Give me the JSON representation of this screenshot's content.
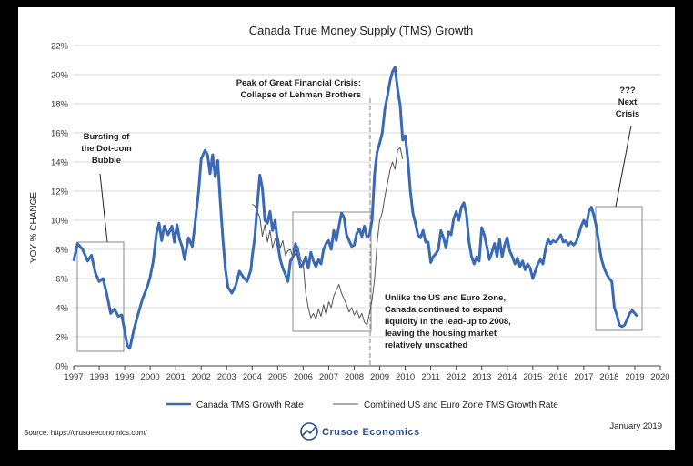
{
  "chart_data": {
    "type": "line",
    "title": "Canada True Money Supply (TMS) Growth",
    "ylabel": "YOY % CHANGE",
    "xlabel": "",
    "xlim": [
      1997,
      2020
    ],
    "ylim": [
      0,
      22
    ],
    "x_ticks": [
      "1997",
      "1998",
      "1999",
      "2000",
      "2001",
      "2002",
      "2003",
      "2004",
      "2005",
      "2006",
      "2007",
      "2008",
      "2009",
      "2010",
      "2011",
      "2012",
      "2013",
      "2014",
      "2015",
      "2016",
      "2017",
      "2018",
      "2019",
      "2020"
    ],
    "y_ticks": [
      "0%",
      "2%",
      "4%",
      "6%",
      "8%",
      "10%",
      "12%",
      "14%",
      "16%",
      "18%",
      "20%",
      "22%"
    ],
    "grid": "horizontal",
    "legend": "bottom",
    "series": [
      {
        "name": "Canada TMS Growth Rate",
        "color": "#3a6ab6",
        "points": [
          [
            1997.0,
            7.2
          ],
          [
            1997.15,
            8.4
          ],
          [
            1997.35,
            8.0
          ],
          [
            1997.55,
            7.2
          ],
          [
            1997.7,
            7.6
          ],
          [
            1997.85,
            6.4
          ],
          [
            1998.0,
            5.8
          ],
          [
            1998.15,
            6.0
          ],
          [
            1998.3,
            4.9
          ],
          [
            1998.45,
            3.6
          ],
          [
            1998.6,
            3.9
          ],
          [
            1998.75,
            3.4
          ],
          [
            1998.88,
            3.5
          ],
          [
            1999.0,
            2.4
          ],
          [
            1999.1,
            1.4
          ],
          [
            1999.2,
            1.2
          ],
          [
            1999.35,
            2.4
          ],
          [
            1999.5,
            3.4
          ],
          [
            1999.7,
            4.6
          ],
          [
            1999.9,
            5.5
          ],
          [
            2000.0,
            6.1
          ],
          [
            2000.12,
            7.2
          ],
          [
            2000.25,
            9.1
          ],
          [
            2000.35,
            9.8
          ],
          [
            2000.45,
            8.6
          ],
          [
            2000.55,
            9.6
          ],
          [
            2000.7,
            9.0
          ],
          [
            2000.85,
            9.6
          ],
          [
            2000.95,
            8.5
          ],
          [
            2001.05,
            9.7
          ],
          [
            2001.15,
            8.7
          ],
          [
            2001.25,
            8.2
          ],
          [
            2001.35,
            7.3
          ],
          [
            2001.5,
            8.8
          ],
          [
            2001.65,
            8.2
          ],
          [
            2001.75,
            9.6
          ],
          [
            2001.9,
            12.0
          ],
          [
            2002.0,
            14.2
          ],
          [
            2002.15,
            14.8
          ],
          [
            2002.25,
            14.5
          ],
          [
            2002.35,
            13.2
          ],
          [
            2002.45,
            14.5
          ],
          [
            2002.55,
            13.0
          ],
          [
            2002.65,
            14.1
          ],
          [
            2002.75,
            11.2
          ],
          [
            2002.85,
            8.7
          ],
          [
            2002.95,
            6.6
          ],
          [
            2003.05,
            5.4
          ],
          [
            2003.2,
            5.0
          ],
          [
            2003.35,
            5.5
          ],
          [
            2003.5,
            6.5
          ],
          [
            2003.65,
            6.1
          ],
          [
            2003.8,
            5.8
          ],
          [
            2003.95,
            6.6
          ],
          [
            2004.0,
            7.5
          ],
          [
            2004.1,
            8.8
          ],
          [
            2004.2,
            11.0
          ],
          [
            2004.3,
            13.1
          ],
          [
            2004.4,
            12.2
          ],
          [
            2004.5,
            10.0
          ],
          [
            2004.6,
            9.8
          ],
          [
            2004.7,
            10.6
          ],
          [
            2004.8,
            9.3
          ],
          [
            2004.9,
            10.0
          ],
          [
            2005.0,
            8.4
          ],
          [
            2005.1,
            7.3
          ],
          [
            2005.2,
            6.7
          ],
          [
            2005.3,
            6.3
          ],
          [
            2005.4,
            5.8
          ],
          [
            2005.5,
            7.2
          ],
          [
            2005.6,
            7.5
          ],
          [
            2005.7,
            8.4
          ],
          [
            2005.8,
            7.5
          ],
          [
            2005.9,
            6.8
          ],
          [
            2006.0,
            7.0
          ],
          [
            2006.1,
            7.5
          ],
          [
            2006.2,
            6.7
          ],
          [
            2006.3,
            7.8
          ],
          [
            2006.4,
            7.2
          ],
          [
            2006.5,
            6.8
          ],
          [
            2006.6,
            7.3
          ],
          [
            2006.7,
            7.0
          ],
          [
            2006.8,
            8.0
          ],
          [
            2006.9,
            8.4
          ],
          [
            2007.0,
            8.6
          ],
          [
            2007.1,
            8.0
          ],
          [
            2007.2,
            9.3
          ],
          [
            2007.3,
            8.6
          ],
          [
            2007.4,
            9.6
          ],
          [
            2007.5,
            10.5
          ],
          [
            2007.6,
            10.2
          ],
          [
            2007.7,
            9.0
          ],
          [
            2007.8,
            8.6
          ],
          [
            2007.9,
            8.2
          ],
          [
            2008.0,
            8.3
          ],
          [
            2008.1,
            9.1
          ],
          [
            2008.2,
            9.4
          ],
          [
            2008.3,
            8.9
          ],
          [
            2008.4,
            9.6
          ],
          [
            2008.5,
            8.8
          ],
          [
            2008.6,
            9.0
          ],
          [
            2008.7,
            10.0
          ],
          [
            2008.8,
            13.2
          ],
          [
            2008.9,
            14.7
          ],
          [
            2009.0,
            15.3
          ],
          [
            2009.1,
            16.0
          ],
          [
            2009.2,
            17.6
          ],
          [
            2009.3,
            18.5
          ],
          [
            2009.4,
            19.5
          ],
          [
            2009.5,
            20.2
          ],
          [
            2009.6,
            20.5
          ],
          [
            2009.7,
            19.0
          ],
          [
            2009.8,
            17.9
          ],
          [
            2009.9,
            15.5
          ],
          [
            2010.0,
            15.8
          ],
          [
            2010.1,
            14.2
          ],
          [
            2010.2,
            12.0
          ],
          [
            2010.3,
            10.5
          ],
          [
            2010.4,
            9.8
          ],
          [
            2010.5,
            9.0
          ],
          [
            2010.6,
            8.8
          ],
          [
            2010.7,
            9.3
          ],
          [
            2010.8,
            8.5
          ],
          [
            2010.9,
            8.5
          ],
          [
            2011.0,
            7.1
          ],
          [
            2011.1,
            7.5
          ],
          [
            2011.2,
            7.7
          ],
          [
            2011.3,
            8.0
          ],
          [
            2011.4,
            9.3
          ],
          [
            2011.5,
            8.8
          ],
          [
            2011.6,
            8.1
          ],
          [
            2011.7,
            9.2
          ],
          [
            2011.8,
            9.0
          ],
          [
            2011.9,
            10.1
          ],
          [
            2012.0,
            10.6
          ],
          [
            2012.1,
            10.0
          ],
          [
            2012.2,
            10.9
          ],
          [
            2012.3,
            11.2
          ],
          [
            2012.4,
            10.4
          ],
          [
            2012.5,
            8.5
          ],
          [
            2012.6,
            7.5
          ],
          [
            2012.7,
            7.0
          ],
          [
            2012.8,
            7.5
          ],
          [
            2012.9,
            7.2
          ],
          [
            2013.0,
            9.5
          ],
          [
            2013.1,
            9.0
          ],
          [
            2013.2,
            8.2
          ],
          [
            2013.3,
            7.3
          ],
          [
            2013.4,
            7.8
          ],
          [
            2013.5,
            8.4
          ],
          [
            2013.6,
            7.5
          ],
          [
            2013.7,
            8.7
          ],
          [
            2013.8,
            7.5
          ],
          [
            2013.9,
            8.3
          ],
          [
            2014.0,
            8.8
          ],
          [
            2014.1,
            7.9
          ],
          [
            2014.2,
            7.5
          ],
          [
            2014.3,
            7.0
          ],
          [
            2014.4,
            7.4
          ],
          [
            2014.5,
            6.8
          ],
          [
            2014.6,
            7.2
          ],
          [
            2014.7,
            6.6
          ],
          [
            2014.8,
            7.0
          ],
          [
            2014.9,
            6.7
          ],
          [
            2015.0,
            6.0
          ],
          [
            2015.1,
            6.5
          ],
          [
            2015.2,
            7.0
          ],
          [
            2015.3,
            7.3
          ],
          [
            2015.4,
            7.0
          ],
          [
            2015.5,
            8.0
          ],
          [
            2015.6,
            8.7
          ],
          [
            2015.7,
            8.4
          ],
          [
            2015.8,
            8.6
          ],
          [
            2015.9,
            8.5
          ],
          [
            2016.0,
            8.7
          ],
          [
            2016.1,
            9.0
          ],
          [
            2016.2,
            8.5
          ],
          [
            2016.3,
            8.6
          ],
          [
            2016.4,
            8.3
          ],
          [
            2016.5,
            8.5
          ],
          [
            2016.6,
            8.3
          ],
          [
            2016.7,
            8.5
          ],
          [
            2016.8,
            9.0
          ],
          [
            2016.9,
            9.6
          ],
          [
            2017.0,
            10.0
          ],
          [
            2017.1,
            9.6
          ],
          [
            2017.2,
            10.6
          ],
          [
            2017.3,
            10.9
          ],
          [
            2017.4,
            10.3
          ],
          [
            2017.5,
            9.5
          ],
          [
            2017.6,
            8.3
          ],
          [
            2017.7,
            7.3
          ],
          [
            2017.8,
            6.7
          ],
          [
            2017.9,
            6.3
          ],
          [
            2018.0,
            6.0
          ],
          [
            2018.1,
            5.8
          ],
          [
            2018.2,
            4.0
          ],
          [
            2018.3,
            3.5
          ],
          [
            2018.4,
            2.8
          ],
          [
            2018.5,
            2.7
          ],
          [
            2018.6,
            2.8
          ],
          [
            2018.7,
            3.2
          ],
          [
            2018.8,
            3.6
          ],
          [
            2018.9,
            3.8
          ],
          [
            2019.0,
            3.6
          ],
          [
            2019.1,
            3.4
          ]
        ]
      },
      {
        "name": "Combined US and Euro Zone TMS Growth Rate",
        "color": "#555555",
        "points": [
          [
            2004.0,
            11.1
          ],
          [
            2004.1,
            11.0
          ],
          [
            2004.2,
            10.6
          ],
          [
            2004.3,
            10.2
          ],
          [
            2004.4,
            8.9
          ],
          [
            2004.5,
            9.7
          ],
          [
            2004.6,
            8.5
          ],
          [
            2004.7,
            9.3
          ],
          [
            2004.8,
            8.1
          ],
          [
            2004.9,
            8.7
          ],
          [
            2005.0,
            9.0
          ],
          [
            2005.1,
            8.1
          ],
          [
            2005.2,
            8.6
          ],
          [
            2005.3,
            7.6
          ],
          [
            2005.4,
            7.9
          ],
          [
            2005.5,
            8.0
          ],
          [
            2005.6,
            7.4
          ],
          [
            2005.7,
            7.7
          ],
          [
            2005.8,
            8.2
          ],
          [
            2005.9,
            7.3
          ],
          [
            2006.0,
            7.0
          ],
          [
            2006.1,
            5.0
          ],
          [
            2006.2,
            4.0
          ],
          [
            2006.3,
            3.3
          ],
          [
            2006.4,
            3.6
          ],
          [
            2006.5,
            3.2
          ],
          [
            2006.6,
            3.9
          ],
          [
            2006.7,
            3.4
          ],
          [
            2006.8,
            4.2
          ],
          [
            2006.9,
            3.5
          ],
          [
            2007.0,
            4.4
          ],
          [
            2007.1,
            4.0
          ],
          [
            2007.2,
            4.8
          ],
          [
            2007.3,
            5.2
          ],
          [
            2007.4,
            5.6
          ],
          [
            2007.5,
            5.0
          ],
          [
            2007.6,
            4.6
          ],
          [
            2007.7,
            4.2
          ],
          [
            2007.8,
            3.7
          ],
          [
            2007.9,
            4.0
          ],
          [
            2008.0,
            3.5
          ],
          [
            2008.1,
            3.8
          ],
          [
            2008.2,
            3.3
          ],
          [
            2008.3,
            3.6
          ],
          [
            2008.4,
            3.0
          ],
          [
            2008.5,
            2.8
          ],
          [
            2008.6,
            3.6
          ],
          [
            2008.7,
            4.5
          ],
          [
            2008.8,
            6.0
          ],
          [
            2008.9,
            8.5
          ],
          [
            2009.0,
            10.0
          ],
          [
            2009.1,
            10.5
          ],
          [
            2009.2,
            11.6
          ],
          [
            2009.3,
            12.5
          ],
          [
            2009.4,
            13.4
          ],
          [
            2009.5,
            14.0
          ],
          [
            2009.6,
            13.5
          ],
          [
            2009.7,
            14.8
          ],
          [
            2009.8,
            15.0
          ],
          [
            2009.9,
            14.2
          ]
        ]
      }
    ],
    "annotations": [
      {
        "lines": [
          "Bursting of",
          "the Dot-com",
          "Bubble"
        ]
      },
      {
        "lines": [
          "Peak of Great Financial Crisis:",
          "Collapse of Lehman Brothers"
        ]
      },
      {
        "lines": [
          "???",
          "Next",
          "Crisis"
        ]
      },
      {
        "lines": [
          "Unlike the US and Euro Zone,",
          "Canada continued to expand",
          "liquidity in the lead-up to 2008,",
          "leaving the housing market",
          "relatively unscathed"
        ]
      }
    ]
  },
  "footer": {
    "source": "Source: https://crusoeeconomics.com/",
    "brand": "Crusoe Economics",
    "date": "January 2019"
  },
  "colors": {
    "brand": "#2b4f8e"
  }
}
